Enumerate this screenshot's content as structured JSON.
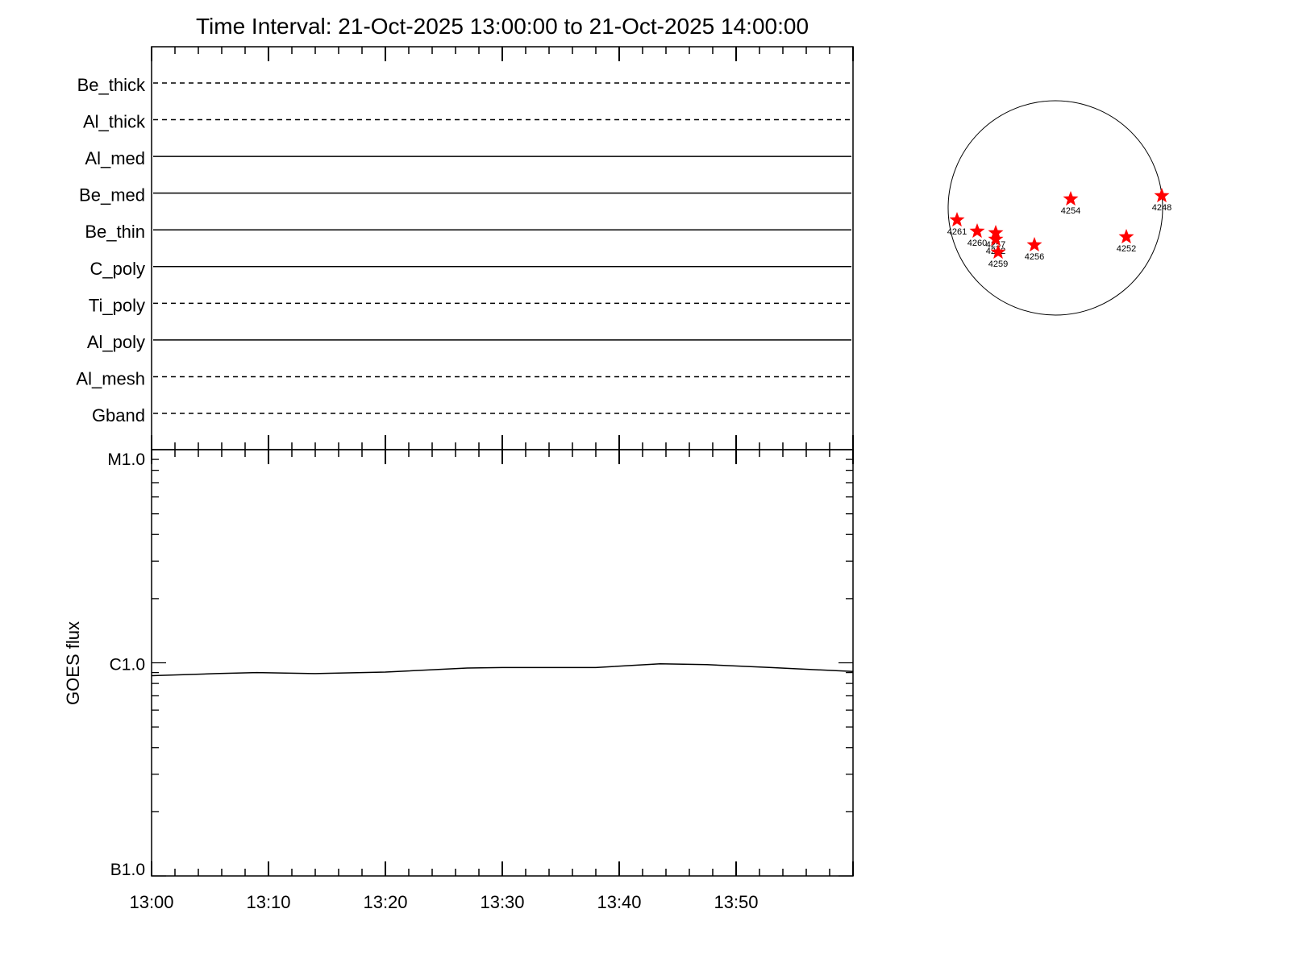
{
  "title": "Time Interval: 21-Oct-2025 13:00:00 to 21-Oct-2025 14:00:00",
  "chart_data": [
    {
      "type": "table",
      "description_channels": "channel coverage panel",
      "channels": [
        {
          "label": "Be_thick",
          "style": "dashed"
        },
        {
          "label": "Al_thick",
          "style": "dashed"
        },
        {
          "label": "Al_med",
          "style": "solid"
        },
        {
          "label": "Be_med",
          "style": "solid"
        },
        {
          "label": "Be_thin",
          "style": "solid"
        },
        {
          "label": "C_poly",
          "style": "solid"
        },
        {
          "label": "Ti_poly",
          "style": "dashed"
        },
        {
          "label": "Al_poly",
          "style": "solid"
        },
        {
          "label": "Al_mesh",
          "style": "dashed"
        },
        {
          "label": "Gband",
          "style": "dashed"
        }
      ]
    },
    {
      "type": "line",
      "ylabel": "GOES flux",
      "yscale": "log",
      "ylim": [
        1e-07,
        1e-05
      ],
      "ytick_labels": [
        {
          "value": 1e-05,
          "label": "M1.0"
        },
        {
          "value": 1e-06,
          "label": "C1.0"
        },
        {
          "value": 1e-07,
          "label": "B1.0"
        }
      ],
      "xlim_minutes": [
        0,
        60
      ],
      "xtick_labels": [
        "13:00",
        "13:10",
        "13:20",
        "13:30",
        "13:40",
        "13:50"
      ],
      "series": [
        {
          "color": "#000000",
          "x": [
            "13:00",
            "13:05.5",
            "13:09",
            "13:14",
            "13:20",
            "13:27",
            "13:30",
            "13:38",
            "13:43.5",
            "13:47.5",
            "13:53",
            "14:00"
          ],
          "y": [
            8.7e-07,
            8.9e-07,
            9e-07,
            8.9e-07,
            9.05e-07,
            9.45e-07,
            9.5e-07,
            9.5e-07,
            9.9e-07,
            9.8e-07,
            9.5e-07,
            9.1e-07
          ]
        }
      ]
    },
    {
      "type": "scatter",
      "marker": "star",
      "marker_color": "#ff0000",
      "regions": [
        "4261",
        "4260",
        "4257",
        "4262",
        "4259",
        "4256",
        "4254",
        "4252",
        "4248"
      ]
    }
  ]
}
